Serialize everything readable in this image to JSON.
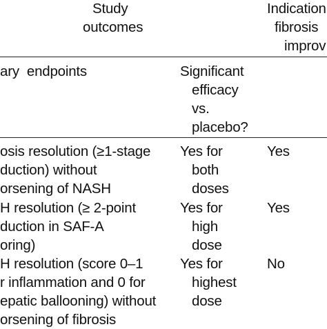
{
  "header": {
    "study_outcomes": [
      "Study",
      "outcomes"
    ],
    "indication": [
      "Indication",
      "fibrosis",
      "improv"
    ]
  },
  "section": {
    "endpoints_label": "ary  endpoints",
    "efficacy_header": [
      "Significant",
      "efficacy",
      "vs.",
      "placebo?"
    ]
  },
  "rows": [
    {
      "outcome": [
        "osis resolution (≥1-stage",
        "duction) without",
        "orsening of NASH"
      ],
      "efficacy": [
        "Yes for",
        "both",
        "doses"
      ],
      "fibrosis": "Yes"
    },
    {
      "outcome": [
        "H resolution (≥ 2-point",
        "duction in SAF-A",
        "oring)"
      ],
      "efficacy": [
        "Yes for",
        "high",
        "dose"
      ],
      "fibrosis": "Yes"
    },
    {
      "outcome": [
        "H resolution (score 0–1",
        "r inflammation and 0 for",
        "epatic ballooning) without",
        "orsening of fibrosis"
      ],
      "efficacy": [
        "Yes for",
        "highest",
        "dose"
      ],
      "fibrosis": "No"
    }
  ]
}
